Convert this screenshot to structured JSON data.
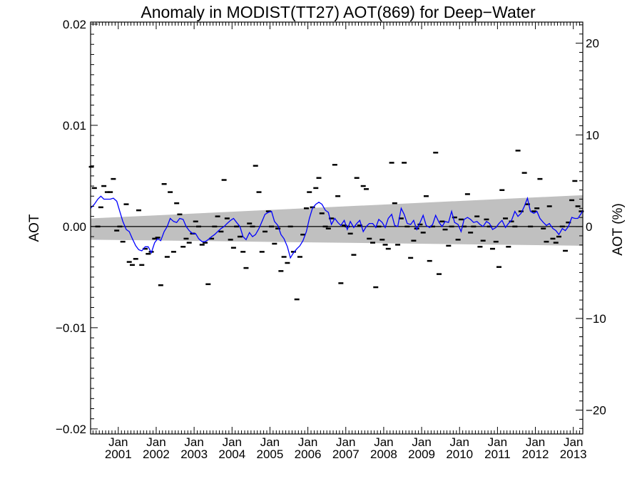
{
  "chart_data": {
    "type": "scatter",
    "title": "Anomaly in MODIST(TT27) AOT(869) for Deep−Water",
    "ylabel": "AOT",
    "ylabel_right": "AOT (%)",
    "xlabel": "",
    "ylim": [
      -0.0205,
      0.0202
    ],
    "ylim_right": [
      -22.6,
      22.3
    ],
    "xlim": [
      2000.27,
      2013.25
    ],
    "grid": false,
    "y_ticks": [
      "0.02",
      "0.01",
      "0.00",
      "−0.01",
      "−0.02"
    ],
    "y_tick_values": [
      0.02,
      0.01,
      0.0,
      -0.01,
      -0.02
    ],
    "y_right_ticks": [
      "20",
      "10",
      "0",
      "−10",
      "−20"
    ],
    "y_right_tick_values": [
      20,
      10,
      0,
      -10,
      -20
    ],
    "x_ticks": [
      {
        "month": "Jan",
        "year": "2001",
        "x": 2001.0
      },
      {
        "month": "Jan",
        "year": "2002",
        "x": 2002.0
      },
      {
        "month": "Jan",
        "year": "2003",
        "x": 2003.0
      },
      {
        "month": "Jan",
        "year": "2004",
        "x": 2004.0
      },
      {
        "month": "Jan",
        "year": "2005",
        "x": 2005.0
      },
      {
        "month": "Jan",
        "year": "2006",
        "x": 2006.0
      },
      {
        "month": "Jan",
        "year": "2007",
        "x": 2007.0
      },
      {
        "month": "Jan",
        "year": "2008",
        "x": 2008.0
      },
      {
        "month": "Jan",
        "year": "2009",
        "x": 2009.0
      },
      {
        "month": "Jan",
        "year": "2010",
        "x": 2010.0
      },
      {
        "month": "Jan",
        "year": "2011",
        "x": 2011.0
      },
      {
        "month": "Jan",
        "year": "2012",
        "x": 2012.0
      },
      {
        "month": "Jan",
        "year": "2013",
        "x": 2013.0
      }
    ],
    "band": {
      "color": "#c0c0c0",
      "x": [
        2000.27,
        2013.25
      ],
      "upper": [
        0.0008,
        0.0031
      ],
      "lower": [
        -0.0013,
        -0.0019
      ]
    },
    "zero_line_color": "#000000",
    "series": [
      {
        "kind": "monthly",
        "color": "#000000",
        "x": [
          2000.29,
          2000.37,
          2000.46,
          2000.54,
          2000.62,
          2000.71,
          2000.79,
          2000.87,
          2000.96,
          2001.04,
          2001.12,
          2001.21,
          2001.29,
          2001.37,
          2001.46,
          2001.54,
          2001.62,
          2001.71,
          2001.79,
          2001.87,
          2001.96,
          2002.04,
          2002.12,
          2002.21,
          2002.29,
          2002.37,
          2002.46,
          2002.54,
          2002.62,
          2002.71,
          2002.79,
          2002.87,
          2002.96,
          2003.04,
          2003.12,
          2003.21,
          2003.29,
          2003.37,
          2003.46,
          2003.54,
          2003.62,
          2003.71,
          2003.79,
          2003.87,
          2003.96,
          2004.04,
          2004.12,
          2004.21,
          2004.29,
          2004.37,
          2004.46,
          2004.54,
          2004.62,
          2004.71,
          2004.79,
          2004.87,
          2004.96,
          2005.04,
          2005.12,
          2005.21,
          2005.29,
          2005.37,
          2005.46,
          2005.54,
          2005.62,
          2005.71,
          2005.79,
          2005.87,
          2005.96,
          2006.04,
          2006.12,
          2006.21,
          2006.29,
          2006.37,
          2006.46,
          2006.54,
          2006.62,
          2006.71,
          2006.79,
          2006.87,
          2006.96,
          2007.04,
          2007.12,
          2007.21,
          2007.29,
          2007.37,
          2007.46,
          2007.54,
          2007.62,
          2007.71,
          2007.79,
          2007.87,
          2007.96,
          2008.04,
          2008.12,
          2008.21,
          2008.29,
          2008.37,
          2008.46,
          2008.54,
          2008.62,
          2008.71,
          2008.79,
          2008.87,
          2008.96,
          2009.04,
          2009.12,
          2009.21,
          2009.29,
          2009.37,
          2009.46,
          2009.54,
          2009.62,
          2009.71,
          2009.79,
          2009.87,
          2009.96,
          2010.04,
          2010.12,
          2010.21,
          2010.29,
          2010.37,
          2010.46,
          2010.54,
          2010.62,
          2010.71,
          2010.79,
          2010.87,
          2010.96,
          2011.04,
          2011.12,
          2011.21,
          2011.29,
          2011.37,
          2011.46,
          2011.54,
          2011.62,
          2011.71,
          2011.79,
          2011.87,
          2011.96,
          2012.04,
          2012.12,
          2012.21,
          2012.29,
          2012.37,
          2012.46,
          2012.54,
          2012.62,
          2012.71,
          2012.79,
          2012.87,
          2012.96,
          2013.04,
          2013.12,
          2013.21
        ],
        "y": [
          0.0059,
          0.0038,
          0.0,
          0.0019,
          0.004,
          0.0034,
          0.0034,
          0.0047,
          -0.0004,
          0.0,
          -0.0015,
          0.0022,
          -0.0035,
          -0.0038,
          -0.0032,
          0.0016,
          -0.0038,
          -0.0022,
          -0.0027,
          -0.0025,
          -0.0012,
          -0.0011,
          -0.0058,
          0.0042,
          -0.003,
          0.0034,
          -0.0025,
          0.0023,
          0.0012,
          -0.002,
          -0.0012,
          -0.0016,
          -0.0007,
          0.0005,
          0.0,
          -0.0018,
          -0.0016,
          -0.0057,
          -0.0012,
          0.0,
          0.001,
          -0.0005,
          0.0046,
          0.0008,
          -0.0013,
          -0.0021,
          0.0,
          -0.001,
          -0.0025,
          -0.0041,
          0.0003,
          0.0,
          0.006,
          0.0034,
          -0.0025,
          -0.0005,
          0.0015,
          0.0,
          -0.0017,
          -0.0002,
          -0.0044,
          -0.003,
          -0.0036,
          0.0,
          -0.0025,
          -0.0072,
          -0.003,
          -0.0008,
          0.0018,
          0.0034,
          0.0019,
          0.0038,
          0.0048,
          0.0013,
          0.0,
          -0.0002,
          0.0008,
          0.0061,
          0.003,
          -0.0056,
          0.0001,
          0.0,
          -0.0007,
          -0.0028,
          0.0048,
          0.0001,
          0.004,
          0.0037,
          -0.0012,
          -0.0016,
          -0.006,
          0.0,
          -0.0013,
          -0.0018,
          -0.0022,
          0.0063,
          0.0023,
          -0.0018,
          0.0008,
          0.0063,
          0.0,
          -0.0031,
          -0.0014,
          -0.0002,
          0.0002,
          -0.0006,
          0.003,
          -0.0034,
          0.0,
          0.0073,
          -0.0047,
          0.0005,
          -0.0003,
          -0.0019,
          0.0,
          0.0009,
          -0.0013,
          0.0007,
          0.0,
          0.0032,
          -0.0006,
          0.0,
          0.001,
          -0.002,
          -0.0014,
          0.0007,
          0.0,
          -0.0022,
          -0.0015,
          -0.004,
          0.0036,
          0.0008,
          -0.002,
          0.0005,
          0.0,
          0.0075,
          0.0015,
          0.0053,
          0.0022,
          0.0,
          0.0015,
          0.0018,
          0.0047,
          -0.0002,
          -0.0015,
          0.002,
          -0.0012,
          -0.0016,
          -0.001,
          0.0,
          -0.0024,
          0.0004,
          0.0026,
          0.0045,
          0.002,
          0.0015
        ]
      },
      {
        "kind": "running_mean",
        "color": "#0000ff",
        "x": [
          2000.27,
          2000.37,
          2000.46,
          2000.54,
          2000.62,
          2000.71,
          2000.79,
          2000.87,
          2000.96,
          2001.04,
          2001.12,
          2001.21,
          2001.29,
          2001.37,
          2001.46,
          2001.54,
          2001.62,
          2001.71,
          2001.79,
          2001.87,
          2001.96,
          2002.04,
          2002.12,
          2002.21,
          2002.29,
          2002.37,
          2002.46,
          2002.54,
          2002.62,
          2002.71,
          2002.79,
          2002.87,
          2002.96,
          2003.04,
          2003.12,
          2003.21,
          2003.29,
          2003.37,
          2003.46,
          2003.54,
          2003.62,
          2003.71,
          2003.79,
          2003.87,
          2003.96,
          2004.04,
          2004.12,
          2004.21,
          2004.29,
          2004.37,
          2004.46,
          2004.54,
          2004.62,
          2004.71,
          2004.79,
          2004.87,
          2004.96,
          2005.04,
          2005.12,
          2005.21,
          2005.29,
          2005.37,
          2005.46,
          2005.54,
          2005.62,
          2005.71,
          2005.79,
          2005.87,
          2005.96,
          2006.04,
          2006.12,
          2006.21,
          2006.29,
          2006.37,
          2006.46,
          2006.54,
          2006.62,
          2006.71,
          2006.79,
          2006.87,
          2006.96,
          2007.04,
          2007.12,
          2007.21,
          2007.29,
          2007.37,
          2007.46,
          2007.54,
          2007.62,
          2007.71,
          2007.79,
          2007.87,
          2007.96,
          2008.04,
          2008.12,
          2008.21,
          2008.29,
          2008.37,
          2008.46,
          2008.54,
          2008.62,
          2008.71,
          2008.79,
          2008.87,
          2008.96,
          2009.04,
          2009.12,
          2009.21,
          2009.29,
          2009.37,
          2009.46,
          2009.54,
          2009.62,
          2009.71,
          2009.79,
          2009.87,
          2009.96,
          2010.04,
          2010.12,
          2010.21,
          2010.29,
          2010.37,
          2010.46,
          2010.54,
          2010.62,
          2010.71,
          2010.79,
          2010.87,
          2010.96,
          2011.04,
          2011.12,
          2011.21,
          2011.29,
          2011.37,
          2011.46,
          2011.54,
          2011.62,
          2011.71,
          2011.79,
          2011.87,
          2011.96,
          2012.04,
          2012.12,
          2012.21,
          2012.29,
          2012.37,
          2012.46,
          2012.54,
          2012.62,
          2012.71,
          2012.79,
          2012.87,
          2012.96,
          2013.04,
          2013.12,
          2013.21,
          2013.25
        ],
        "y": [
          0.0018,
          0.0022,
          0.0027,
          0.003,
          0.0027,
          0.0027,
          0.0027,
          0.0028,
          0.0025,
          0.0015,
          0.0005,
          -0.0003,
          -0.0005,
          -0.0012,
          -0.0019,
          -0.0023,
          -0.0024,
          -0.002,
          -0.002,
          -0.0026,
          -0.0016,
          -0.0012,
          -0.0014,
          -0.0005,
          0.0,
          0.0008,
          0.0005,
          0.0004,
          0.0008,
          0.0007,
          0.0,
          -0.0004,
          -0.0007,
          -0.0007,
          -0.0012,
          -0.0015,
          -0.0015,
          -0.0013,
          -0.001,
          -0.0008,
          -0.0005,
          -0.0002,
          0.0,
          0.0003,
          0.0006,
          0.0008,
          0.0004,
          0.0,
          -0.001,
          -0.0013,
          -0.0006,
          -0.001,
          -0.0008,
          -0.0002,
          0.0005,
          0.0012,
          0.0014,
          0.0015,
          0.0005,
          0.0001,
          -0.0008,
          -0.0012,
          -0.002,
          -0.0031,
          -0.0026,
          -0.0022,
          -0.0019,
          -0.0014,
          -0.0005,
          0.0008,
          0.0018,
          0.0022,
          0.0024,
          0.0022,
          0.0016,
          0.0014,
          0.0002,
          0.0008,
          0.0004,
          0.0001,
          0.0006,
          -0.0003,
          0.0005,
          -0.0001,
          0.0003,
          0.0006,
          -0.0005,
          0.0,
          0.0003,
          0.0003,
          -0.0001,
          0.0007,
          0.0004,
          -0.0001,
          0.0008,
          0.0012,
          0.0001,
          0.0,
          0.0018,
          0.0012,
          0.0003,
          0.0002,
          0.0006,
          -0.0003,
          0.0004,
          0.0011,
          0.0001,
          -0.0001,
          0.0002,
          0.0011,
          0.0004,
          0.0,
          0.0005,
          0.0004,
          0.0015,
          0.0004,
          0.0002,
          -0.0005,
          0.0007,
          0.0009,
          0.0007,
          0.0004,
          0.0005,
          0.0002,
          0.0,
          0.0005,
          0.0003,
          -0.0003,
          -0.0001,
          0.0003,
          0.0006,
          -0.0001,
          0.0003,
          0.0006,
          0.0015,
          0.001,
          0.0013,
          0.002,
          0.0028,
          0.0015,
          0.0013,
          0.0015,
          0.0008,
          0.0004,
          0.0001,
          0.0003,
          -0.0002,
          -0.0004,
          -0.0008,
          -0.0002,
          -0.0004,
          0.0,
          0.0009,
          0.0008,
          0.0008,
          0.0013,
          0.0016
        ]
      }
    ]
  }
}
